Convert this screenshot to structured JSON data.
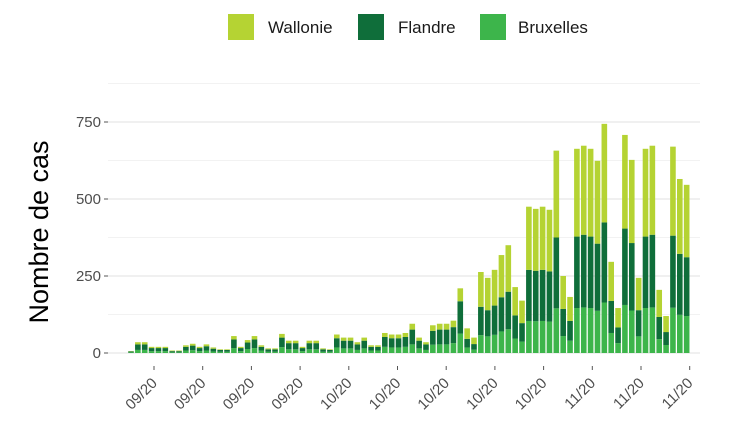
{
  "chart_data": {
    "type": "bar",
    "stacked": true,
    "title": "",
    "xlabel": "",
    "ylabel": "Nombre de cas",
    "ylim": [
      0,
      875
    ],
    "yticks": [
      0,
      250,
      500,
      750
    ],
    "grid": true,
    "legend_position": "top",
    "xtick_labels": [
      "09/20",
      "09/20",
      "09/20",
      "09/20",
      "10/20",
      "10/20",
      "10/20",
      "10/20",
      "10/20",
      "11/20",
      "11/20",
      "11/20"
    ],
    "series": [
      {
        "name": "Wallonie",
        "color": "#b5d333",
        "values": [
          1,
          7,
          7,
          4,
          4,
          4,
          2,
          2,
          5,
          6,
          4,
          6,
          4,
          2,
          2,
          11,
          4,
          8,
          11,
          5,
          3,
          3,
          12,
          8,
          8,
          4,
          8,
          8,
          3,
          2,
          12,
          10,
          10,
          7,
          10,
          5,
          5,
          13,
          12,
          12,
          13,
          19,
          10,
          7,
          18,
          19,
          19,
          21,
          42,
          34,
          21,
          113,
          105,
          116,
          137,
          151,
          92,
          73,
          205,
          201,
          205,
          200,
          282,
          107,
          78,
          285,
          289,
          285,
          269,
          320,
          127,
          63,
          304,
          270,
          105,
          285,
          289,
          88,
          52,
          289,
          243,
          235
        ]
      },
      {
        "name": "Flandre",
        "color": "#0f6e3a",
        "values": [
          3,
          18,
          18,
          10,
          10,
          10,
          4,
          4,
          12,
          15,
          10,
          14,
          9,
          6,
          6,
          28,
          10,
          21,
          28,
          12,
          8,
          8,
          31,
          20,
          20,
          10,
          20,
          20,
          8,
          6,
          30,
          25,
          25,
          18,
          25,
          12,
          12,
          32,
          30,
          30,
          32,
          48,
          25,
          18,
          45,
          48,
          48,
          52,
          105,
          28,
          18,
          92,
          85,
          95,
          111,
          122,
          75,
          60,
          166,
          164,
          166,
          163,
          230,
          88,
          64,
          232,
          236,
          232,
          218,
          260,
          104,
          51,
          248,
          219,
          85,
          232,
          236,
          72,
          42,
          234,
          198,
          191
        ]
      },
      {
        "name": "Bruxelles",
        "color": "#3db54b",
        "values": [
          2,
          10,
          10,
          6,
          6,
          6,
          2,
          2,
          8,
          9,
          6,
          8,
          5,
          4,
          4,
          16,
          6,
          13,
          16,
          8,
          4,
          4,
          19,
          12,
          12,
          6,
          12,
          12,
          4,
          4,
          18,
          15,
          15,
          10,
          15,
          8,
          8,
          20,
          18,
          18,
          20,
          28,
          15,
          10,
          27,
          28,
          28,
          32,
          63,
          18,
          11,
          58,
          54,
          59,
          70,
          77,
          47,
          37,
          104,
          103,
          104,
          102,
          145,
          55,
          40,
          146,
          148,
          146,
          137,
          164,
          65,
          32,
          156,
          138,
          54,
          146,
          148,
          45,
          26,
          147,
          124,
          120
        ]
      }
    ]
  }
}
